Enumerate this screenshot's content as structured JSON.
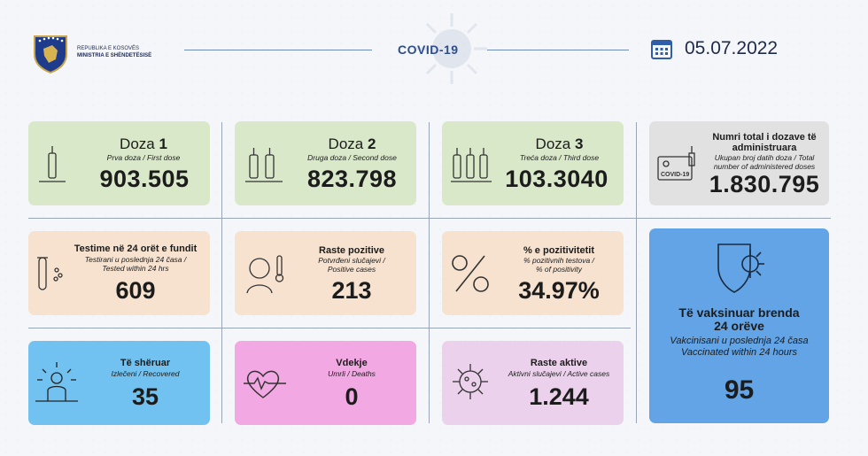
{
  "header": {
    "ministry_line1": "REPUBLIKA E KOSOVËS",
    "ministry_line2": "MINISTRIA E SHËNDETËSISË",
    "covid_label": "COVID",
    "covid_suffix": "-19",
    "date": "05.07.2022"
  },
  "cards": {
    "dose1": {
      "word": "Doza",
      "num": "1",
      "sub": "Prva doza / First dose",
      "value": "903.505"
    },
    "dose2": {
      "word": "Doza",
      "num": "2",
      "sub": "Druga doza / Second dose",
      "value": "823.798"
    },
    "dose3": {
      "word": "Doza",
      "num": "3",
      "sub": "Treća doza / Third dose",
      "value": "103.3040"
    },
    "total": {
      "title": "Numri total i dozave të administruara",
      "sub1": "Ukupan broj datih doza / Total",
      "sub2": "number of administered doses",
      "value": "1.830.795",
      "cert_label": "COVID-19"
    },
    "tests": {
      "title": "Testime në 24 orët e fundit",
      "sub1": "Testirani u poslednja 24 časa /",
      "sub2": "Tested within 24 hrs",
      "value": "609"
    },
    "positive": {
      "title": "Raste pozitive",
      "sub1": "Potvrđeni slučajevi /",
      "sub2": "Positive cases",
      "value": "213"
    },
    "positivity": {
      "title": "% e pozitivitetit",
      "sub1": "% pozitivnih testova /",
      "sub2": "% of positivity",
      "value": "34.97%"
    },
    "recovered": {
      "title": "Të shëruar",
      "sub1": "Izlečeni / Recovered",
      "value": "35"
    },
    "deaths": {
      "title": "Vdekje",
      "sub1": "Umrli / Deaths",
      "value": "0"
    },
    "active": {
      "title": "Raste aktive",
      "sub1": "Aktivni slučajevi / Active cases",
      "value": "1.244"
    },
    "vaccinated24": {
      "title1": "Të vaksinuar brenda",
      "title2": "24 orëve",
      "sub1": "Vakcinisani u poslednja 24 časa",
      "sub2": "Vaccinated within 24 hours",
      "value": "95"
    }
  },
  "colors": {
    "green": "#d9e8c8",
    "grey": "#e1e1e2",
    "peach": "#f6e2cf",
    "blue": "#71c2f0",
    "pink": "#f2a8e2",
    "lilac": "#ecd1ec",
    "bigblue": "#62a4e6"
  }
}
